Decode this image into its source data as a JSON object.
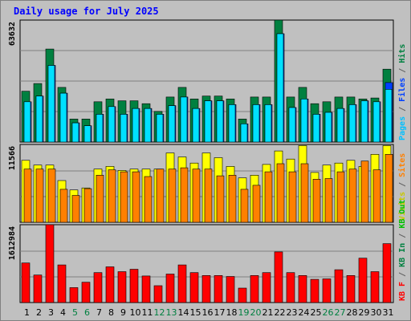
{
  "title": "Daily usage for July 2025",
  "colors": {
    "background": "#c0c0c0",
    "plot_bg": "#c0c0c0",
    "grid": "#808080",
    "hits": "#008040",
    "files": "#0040ff",
    "pages": "#00e0ff",
    "visits": "#ffff00",
    "sites": "#ff8000",
    "kb_in": "#008040",
    "kb_out": "#00c000",
    "kb_f": "#ff0000",
    "weekday_tick": "#000000",
    "weekend_tick": "#008040",
    "title": "#0000ff"
  },
  "chart_data": [
    {
      "type": "bar",
      "panel": "top",
      "max_label": "63632",
      "right_labels": [
        {
          "text": "Pages",
          "color": "#00c0ff"
        },
        {
          "text": " / ",
          "color": "#606060"
        },
        {
          "text": "Files",
          "color": "#0040ff"
        },
        {
          "text": " / ",
          "color": "#606060"
        },
        {
          "text": "Hits",
          "color": "#008040"
        }
      ],
      "ymax": 63632,
      "categories": [
        "1",
        "2",
        "3",
        "4",
        "5",
        "6",
        "7",
        "8",
        "9",
        "10",
        "11",
        "12",
        "13",
        "14",
        "15",
        "16",
        "17",
        "18",
        "19",
        "20",
        "21",
        "22",
        "23",
        "24",
        "25",
        "26",
        "27",
        "28",
        "29",
        "30",
        "31"
      ],
      "series": [
        {
          "name": "Hits",
          "color": "#008040",
          "values": [
            26500,
            30500,
            48500,
            28500,
            12000,
            12000,
            21000,
            22500,
            21500,
            21500,
            20000,
            16000,
            23500,
            28500,
            22500,
            24000,
            24000,
            22500,
            12000,
            23500,
            23500,
            65000,
            23500,
            28500,
            20000,
            21000,
            23500,
            23500,
            22500,
            23000,
            38000
          ]
        },
        {
          "name": "Files",
          "color": "#0040ff",
          "values": [
            21000,
            24000,
            40000,
            25500,
            10000,
            8500,
            14500,
            18500,
            14500,
            17500,
            17500,
            14500,
            19000,
            23500,
            17500,
            21500,
            21500,
            19500,
            9500,
            19500,
            19500,
            56500,
            18000,
            22500,
            14500,
            15500,
            17500,
            19500,
            21500,
            21000,
            31000
          ]
        },
        {
          "name": "Pages",
          "color": "#00e0ff",
          "values": [
            21000,
            24000,
            40000,
            25500,
            10000,
            8500,
            14500,
            18500,
            14500,
            17500,
            17500,
            14500,
            19000,
            23500,
            17500,
            21500,
            21500,
            19500,
            9500,
            19500,
            19500,
            56500,
            18000,
            22500,
            14500,
            15500,
            17500,
            19500,
            21500,
            21000,
            27500
          ]
        }
      ]
    },
    {
      "type": "bar",
      "panel": "middle",
      "max_label": "11566",
      "right_labels": [
        {
          "text": "Visits",
          "color": "#c8c800"
        },
        {
          "text": " / ",
          "color": "#606060"
        },
        {
          "text": "Sites",
          "color": "#ff8000"
        }
      ],
      "ymax": 11566,
      "categories": [
        "1",
        "2",
        "3",
        "4",
        "5",
        "6",
        "7",
        "8",
        "9",
        "10",
        "11",
        "12",
        "13",
        "14",
        "15",
        "16",
        "17",
        "18",
        "19",
        "20",
        "21",
        "22",
        "23",
        "24",
        "25",
        "26",
        "27",
        "28",
        "29",
        "30",
        "31"
      ],
      "series": [
        {
          "name": "Visits",
          "color": "#ffff00",
          "values": [
            9200,
            8500,
            8500,
            6200,
            4800,
            5100,
            7900,
            8300,
            7700,
            7900,
            7900,
            7900,
            10300,
            9700,
            8800,
            10300,
            9600,
            8300,
            6600,
            7000,
            8600,
            10600,
            9400,
            11400,
            7400,
            8500,
            8800,
            9200,
            8300,
            10100,
            11400
          ]
        },
        {
          "name": "Sites",
          "color": "#ff8000",
          "values": [
            7900,
            7900,
            7900,
            4900,
            4000,
            5000,
            7000,
            7800,
            7500,
            7500,
            6800,
            7900,
            7900,
            8100,
            7900,
            7900,
            6900,
            7000,
            4900,
            5500,
            7500,
            8700,
            7500,
            8700,
            6400,
            6500,
            7500,
            7900,
            9100,
            7800,
            10100
          ]
        }
      ]
    },
    {
      "type": "bar",
      "panel": "bottom",
      "max_label": "1612984",
      "right_labels": [
        {
          "text": "KB F",
          "color": "#ff0000"
        },
        {
          "text": " / ",
          "color": "#606060"
        },
        {
          "text": "KB In",
          "color": "#008040"
        },
        {
          "text": " / ",
          "color": "#606060"
        },
        {
          "text": "KB Out",
          "color": "#00c000"
        }
      ],
      "ymax": 1612984,
      "categories": [
        "1",
        "2",
        "3",
        "4",
        "5",
        "6",
        "7",
        "8",
        "9",
        "10",
        "11",
        "12",
        "13",
        "14",
        "15",
        "16",
        "17",
        "18",
        "19",
        "20",
        "21",
        "22",
        "23",
        "24",
        "25",
        "26",
        "27",
        "28",
        "29",
        "30",
        "31"
      ],
      "series": [
        {
          "name": "KB F",
          "color": "#ff0000",
          "values": [
            820000,
            570000,
            1670000,
            780000,
            310000,
            420000,
            620000,
            740000,
            640000,
            690000,
            550000,
            350000,
            590000,
            780000,
            620000,
            560000,
            560000,
            540000,
            300000,
            560000,
            620000,
            1050000,
            620000,
            560000,
            480000,
            490000,
            680000,
            560000,
            920000,
            640000,
            1220000
          ]
        }
      ]
    }
  ],
  "x_ticks": [
    {
      "label": "1",
      "weekend": false
    },
    {
      "label": "2",
      "weekend": false
    },
    {
      "label": "3",
      "weekend": false
    },
    {
      "label": "4",
      "weekend": false
    },
    {
      "label": "5",
      "weekend": true
    },
    {
      "label": "6",
      "weekend": true
    },
    {
      "label": "7",
      "weekend": false
    },
    {
      "label": "8",
      "weekend": false
    },
    {
      "label": "9",
      "weekend": false
    },
    {
      "label": "10",
      "weekend": false
    },
    {
      "label": "11",
      "weekend": false
    },
    {
      "label": "12",
      "weekend": true
    },
    {
      "label": "13",
      "weekend": true
    },
    {
      "label": "14",
      "weekend": false
    },
    {
      "label": "15",
      "weekend": false
    },
    {
      "label": "16",
      "weekend": false
    },
    {
      "label": "17",
      "weekend": false
    },
    {
      "label": "18",
      "weekend": false
    },
    {
      "label": "19",
      "weekend": true
    },
    {
      "label": "20",
      "weekend": true
    },
    {
      "label": "21",
      "weekend": false
    },
    {
      "label": "22",
      "weekend": false
    },
    {
      "label": "23",
      "weekend": false
    },
    {
      "label": "24",
      "weekend": false
    },
    {
      "label": "25",
      "weekend": false
    },
    {
      "label": "26",
      "weekend": true
    },
    {
      "label": "27",
      "weekend": true
    },
    {
      "label": "28",
      "weekend": false
    },
    {
      "label": "29",
      "weekend": false
    },
    {
      "label": "30",
      "weekend": false
    },
    {
      "label": "31",
      "weekend": false
    }
  ]
}
